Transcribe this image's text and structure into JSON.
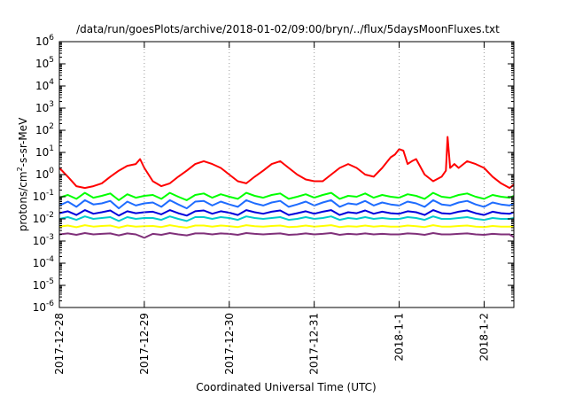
{
  "chart_data": {
    "type": "line",
    "title": "/data/run/goesPlots/archive/2018-01-02/09:00/bryn/../flux/5daysMoonFluxes.txt",
    "xlabel": "Coordinated Universal Time (UTC)",
    "ylabel": "protons/cm2-s-sr-MeV",
    "ylabel_parts": {
      "base": "protons/cm",
      "sup": "2",
      "rest": "-s-sr-MeV"
    },
    "yscale": "log",
    "ylim": [
      1e-06,
      1000000.0
    ],
    "xlim": [
      0,
      5.35
    ],
    "x_unit_note": "",
    "grid": false,
    "legend": "none",
    "yticks": [
      {
        "exp": "-6",
        "value": 1e-06
      },
      {
        "exp": "-5",
        "value": 1e-05
      },
      {
        "exp": "-4",
        "value": 0.0001
      },
      {
        "exp": "-3",
        "value": 0.001
      },
      {
        "exp": "-2",
        "value": 0.01
      },
      {
        "exp": "-1",
        "value": 0.1
      },
      {
        "exp": "0",
        "value": 1
      },
      {
        "exp": "1",
        "value": 10
      },
      {
        "exp": "2",
        "value": 100
      },
      {
        "exp": "3",
        "value": 1000
      },
      {
        "exp": "4",
        "value": 10000
      },
      {
        "exp": "5",
        "value": 100000
      },
      {
        "exp": "6",
        "value": 1000000
      }
    ],
    "ytick_base": "10",
    "xticks": [
      {
        "label": "2017-12-28",
        "value": 0
      },
      {
        "label": "2017-12-29",
        "value": 1
      },
      {
        "label": "2017-12-30",
        "value": 2
      },
      {
        "label": "2017-12-31",
        "value": 3
      },
      {
        "label": "2018-1-1",
        "value": 4
      },
      {
        "label": "2018-1-2",
        "value": 5
      }
    ],
    "series": [
      {
        "color": "#ff0000",
        "x": [
          0,
          0.1,
          0.2,
          0.3,
          0.4,
          0.5,
          0.6,
          0.7,
          0.8,
          0.9,
          0.95,
          1.0,
          1.1,
          1.2,
          1.3,
          1.4,
          1.5,
          1.6,
          1.7,
          1.8,
          1.9,
          2.0,
          2.1,
          2.2,
          2.3,
          2.4,
          2.5,
          2.6,
          2.7,
          2.8,
          2.9,
          3.0,
          3.1,
          3.2,
          3.3,
          3.4,
          3.5,
          3.6,
          3.7,
          3.8,
          3.9,
          3.95,
          4.0,
          4.05,
          4.1,
          4.15,
          4.2,
          4.3,
          4.4,
          4.5,
          4.55,
          4.57,
          4.6,
          4.65,
          4.7,
          4.8,
          4.9,
          5.0,
          5.1,
          5.2,
          5.3,
          5.35
        ],
        "y": [
          2,
          0.8,
          0.3,
          0.25,
          0.3,
          0.4,
          0.8,
          1.5,
          2.5,
          3,
          5,
          2,
          0.5,
          0.3,
          0.4,
          0.8,
          1.5,
          3,
          4,
          3,
          2,
          1,
          0.5,
          0.4,
          0.8,
          1.5,
          3,
          4,
          2,
          1,
          0.6,
          0.5,
          0.5,
          1,
          2,
          3,
          2,
          1,
          0.8,
          2,
          6,
          8,
          14,
          12,
          3,
          4,
          5,
          1,
          0.5,
          0.8,
          1.5,
          50,
          2,
          3,
          2,
          4,
          3,
          2,
          0.8,
          0.4,
          0.25,
          0.35
        ]
      },
      {
        "color": "#00ff00",
        "x": [
          0,
          0.1,
          0.2,
          0.3,
          0.4,
          0.5,
          0.6,
          0.7,
          0.8,
          0.9,
          1.0,
          1.1,
          1.2,
          1.3,
          1.4,
          1.5,
          1.6,
          1.7,
          1.8,
          1.9,
          2.0,
          2.1,
          2.2,
          2.3,
          2.4,
          2.5,
          2.6,
          2.7,
          2.8,
          2.9,
          3.0,
          3.1,
          3.2,
          3.3,
          3.4,
          3.5,
          3.6,
          3.7,
          3.8,
          3.9,
          4.0,
          4.1,
          4.2,
          4.3,
          4.4,
          4.5,
          4.6,
          4.7,
          4.8,
          4.9,
          5.0,
          5.1,
          5.2,
          5.3,
          5.35
        ],
        "y": [
          0.09,
          0.12,
          0.08,
          0.15,
          0.09,
          0.11,
          0.14,
          0.07,
          0.13,
          0.09,
          0.11,
          0.12,
          0.08,
          0.15,
          0.1,
          0.07,
          0.12,
          0.14,
          0.09,
          0.13,
          0.1,
          0.08,
          0.15,
          0.11,
          0.09,
          0.12,
          0.14,
          0.08,
          0.1,
          0.13,
          0.09,
          0.12,
          0.15,
          0.08,
          0.11,
          0.1,
          0.14,
          0.09,
          0.12,
          0.1,
          0.09,
          0.13,
          0.11,
          0.08,
          0.15,
          0.1,
          0.09,
          0.12,
          0.14,
          0.1,
          0.08,
          0.12,
          0.1,
          0.09,
          0.11
        ]
      },
      {
        "color": "#1e6cff",
        "x": [
          0,
          0.1,
          0.2,
          0.3,
          0.4,
          0.5,
          0.6,
          0.7,
          0.8,
          0.9,
          1.0,
          1.1,
          1.2,
          1.3,
          1.4,
          1.5,
          1.6,
          1.7,
          1.8,
          1.9,
          2.0,
          2.1,
          2.2,
          2.3,
          2.4,
          2.5,
          2.6,
          2.7,
          2.8,
          2.9,
          3.0,
          3.1,
          3.2,
          3.3,
          3.4,
          3.5,
          3.6,
          3.7,
          3.8,
          3.9,
          4.0,
          4.1,
          4.2,
          4.3,
          4.4,
          4.5,
          4.6,
          4.7,
          4.8,
          4.9,
          5.0,
          5.1,
          5.2,
          5.3,
          5.35
        ],
        "y": [
          0.04,
          0.06,
          0.035,
          0.07,
          0.045,
          0.05,
          0.065,
          0.03,
          0.06,
          0.04,
          0.05,
          0.055,
          0.035,
          0.07,
          0.045,
          0.03,
          0.06,
          0.065,
          0.04,
          0.06,
          0.045,
          0.035,
          0.07,
          0.05,
          0.04,
          0.055,
          0.065,
          0.035,
          0.045,
          0.06,
          0.04,
          0.055,
          0.07,
          0.035,
          0.05,
          0.045,
          0.065,
          0.04,
          0.055,
          0.045,
          0.04,
          0.06,
          0.05,
          0.035,
          0.07,
          0.045,
          0.04,
          0.055,
          0.065,
          0.045,
          0.035,
          0.055,
          0.045,
          0.04,
          0.05
        ]
      },
      {
        "color": "#0000dd",
        "x": [
          0,
          0.1,
          0.2,
          0.3,
          0.4,
          0.5,
          0.6,
          0.7,
          0.8,
          0.9,
          1.0,
          1.1,
          1.2,
          1.3,
          1.4,
          1.5,
          1.6,
          1.7,
          1.8,
          1.9,
          2.0,
          2.1,
          2.2,
          2.3,
          2.4,
          2.5,
          2.6,
          2.7,
          2.8,
          2.9,
          3.0,
          3.1,
          3.2,
          3.3,
          3.4,
          3.5,
          3.6,
          3.7,
          3.8,
          3.9,
          4.0,
          4.1,
          4.2,
          4.3,
          4.4,
          4.5,
          4.6,
          4.7,
          4.8,
          4.9,
          5.0,
          5.1,
          5.2,
          5.3,
          5.35
        ],
        "y": [
          0.018,
          0.022,
          0.015,
          0.025,
          0.017,
          0.02,
          0.024,
          0.014,
          0.022,
          0.018,
          0.02,
          0.021,
          0.016,
          0.025,
          0.018,
          0.014,
          0.022,
          0.024,
          0.017,
          0.022,
          0.019,
          0.015,
          0.025,
          0.02,
          0.017,
          0.021,
          0.024,
          0.015,
          0.018,
          0.022,
          0.017,
          0.021,
          0.025,
          0.015,
          0.02,
          0.018,
          0.024,
          0.017,
          0.021,
          0.018,
          0.017,
          0.022,
          0.02,
          0.015,
          0.025,
          0.018,
          0.017,
          0.021,
          0.024,
          0.018,
          0.015,
          0.021,
          0.018,
          0.017,
          0.02
        ]
      },
      {
        "color": "#00cccc",
        "x": [
          0,
          0.1,
          0.2,
          0.3,
          0.4,
          0.5,
          0.6,
          0.7,
          0.8,
          0.9,
          1.0,
          1.1,
          1.2,
          1.3,
          1.4,
          1.5,
          1.6,
          1.7,
          1.8,
          1.9,
          2.0,
          2.1,
          2.2,
          2.3,
          2.4,
          2.5,
          2.6,
          2.7,
          2.8,
          2.9,
          3.0,
          3.1,
          3.2,
          3.3,
          3.4,
          3.5,
          3.6,
          3.7,
          3.8,
          3.9,
          4.0,
          4.1,
          4.2,
          4.3,
          4.4,
          4.5,
          4.6,
          4.7,
          4.8,
          4.9,
          5.0,
          5.1,
          5.2,
          5.3,
          5.35
        ],
        "y": [
          0.01,
          0.012,
          0.009,
          0.013,
          0.01,
          0.011,
          0.012,
          0.008,
          0.012,
          0.01,
          0.011,
          0.011,
          0.009,
          0.013,
          0.01,
          0.008,
          0.012,
          0.012,
          0.01,
          0.012,
          0.011,
          0.009,
          0.013,
          0.011,
          0.01,
          0.011,
          0.012,
          0.009,
          0.01,
          0.012,
          0.01,
          0.011,
          0.013,
          0.009,
          0.011,
          0.01,
          0.012,
          0.01,
          0.011,
          0.01,
          0.01,
          0.012,
          0.011,
          0.009,
          0.013,
          0.01,
          0.01,
          0.011,
          0.012,
          0.01,
          0.009,
          0.011,
          0.01,
          0.01,
          0.011
        ]
      },
      {
        "color": "#ffff00",
        "x": [
          0,
          0.1,
          0.2,
          0.3,
          0.4,
          0.5,
          0.6,
          0.7,
          0.8,
          0.9,
          1.0,
          1.1,
          1.2,
          1.3,
          1.4,
          1.5,
          1.6,
          1.7,
          1.8,
          1.9,
          2.0,
          2.1,
          2.2,
          2.3,
          2.4,
          2.5,
          2.6,
          2.7,
          2.8,
          2.9,
          3.0,
          3.1,
          3.2,
          3.3,
          3.4,
          3.5,
          3.6,
          3.7,
          3.8,
          3.9,
          4.0,
          4.1,
          4.2,
          4.3,
          4.4,
          4.5,
          4.6,
          4.7,
          4.8,
          4.9,
          5.0,
          5.1,
          5.2,
          5.3,
          5.35
        ],
        "y": [
          0.0045,
          0.005,
          0.0042,
          0.0052,
          0.0045,
          0.0048,
          0.005,
          0.004,
          0.005,
          0.0045,
          0.0047,
          0.0048,
          0.0043,
          0.0052,
          0.0045,
          0.004,
          0.005,
          0.005,
          0.0045,
          0.005,
          0.0047,
          0.0043,
          0.0052,
          0.0047,
          0.0045,
          0.0048,
          0.005,
          0.0043,
          0.0045,
          0.005,
          0.0045,
          0.0048,
          0.0052,
          0.0043,
          0.0047,
          0.0045,
          0.005,
          0.0045,
          0.0048,
          0.0045,
          0.0045,
          0.005,
          0.0047,
          0.0043,
          0.0052,
          0.0045,
          0.0045,
          0.0048,
          0.005,
          0.0045,
          0.0043,
          0.0048,
          0.0045,
          0.0045,
          0.0047
        ]
      },
      {
        "color": "#80307a",
        "x": [
          0,
          0.1,
          0.2,
          0.3,
          0.4,
          0.5,
          0.6,
          0.7,
          0.8,
          0.9,
          1.0,
          1.1,
          1.2,
          1.3,
          1.4,
          1.5,
          1.6,
          1.7,
          1.8,
          1.9,
          2.0,
          2.1,
          2.2,
          2.3,
          2.4,
          2.5,
          2.6,
          2.7,
          2.8,
          2.9,
          3.0,
          3.1,
          3.2,
          3.3,
          3.4,
          3.5,
          3.6,
          3.7,
          3.8,
          3.9,
          4.0,
          4.1,
          4.2,
          4.3,
          4.4,
          4.5,
          4.6,
          4.7,
          4.8,
          4.9,
          5.0,
          5.1,
          5.2,
          5.3,
          5.35
        ],
        "y": [
          0.002,
          0.0022,
          0.0019,
          0.0023,
          0.002,
          0.0021,
          0.0022,
          0.0018,
          0.0022,
          0.002,
          0.0014,
          0.0021,
          0.0019,
          0.0023,
          0.002,
          0.0018,
          0.0022,
          0.0022,
          0.002,
          0.0022,
          0.0021,
          0.0019,
          0.0023,
          0.0021,
          0.002,
          0.0021,
          0.0022,
          0.0019,
          0.002,
          0.0022,
          0.002,
          0.0021,
          0.0023,
          0.0019,
          0.0021,
          0.002,
          0.0022,
          0.002,
          0.0021,
          0.002,
          0.002,
          0.0022,
          0.0021,
          0.0019,
          0.0023,
          0.002,
          0.002,
          0.0021,
          0.0022,
          0.002,
          0.0019,
          0.0021,
          0.002,
          0.002,
          0.0015
        ]
      }
    ]
  }
}
